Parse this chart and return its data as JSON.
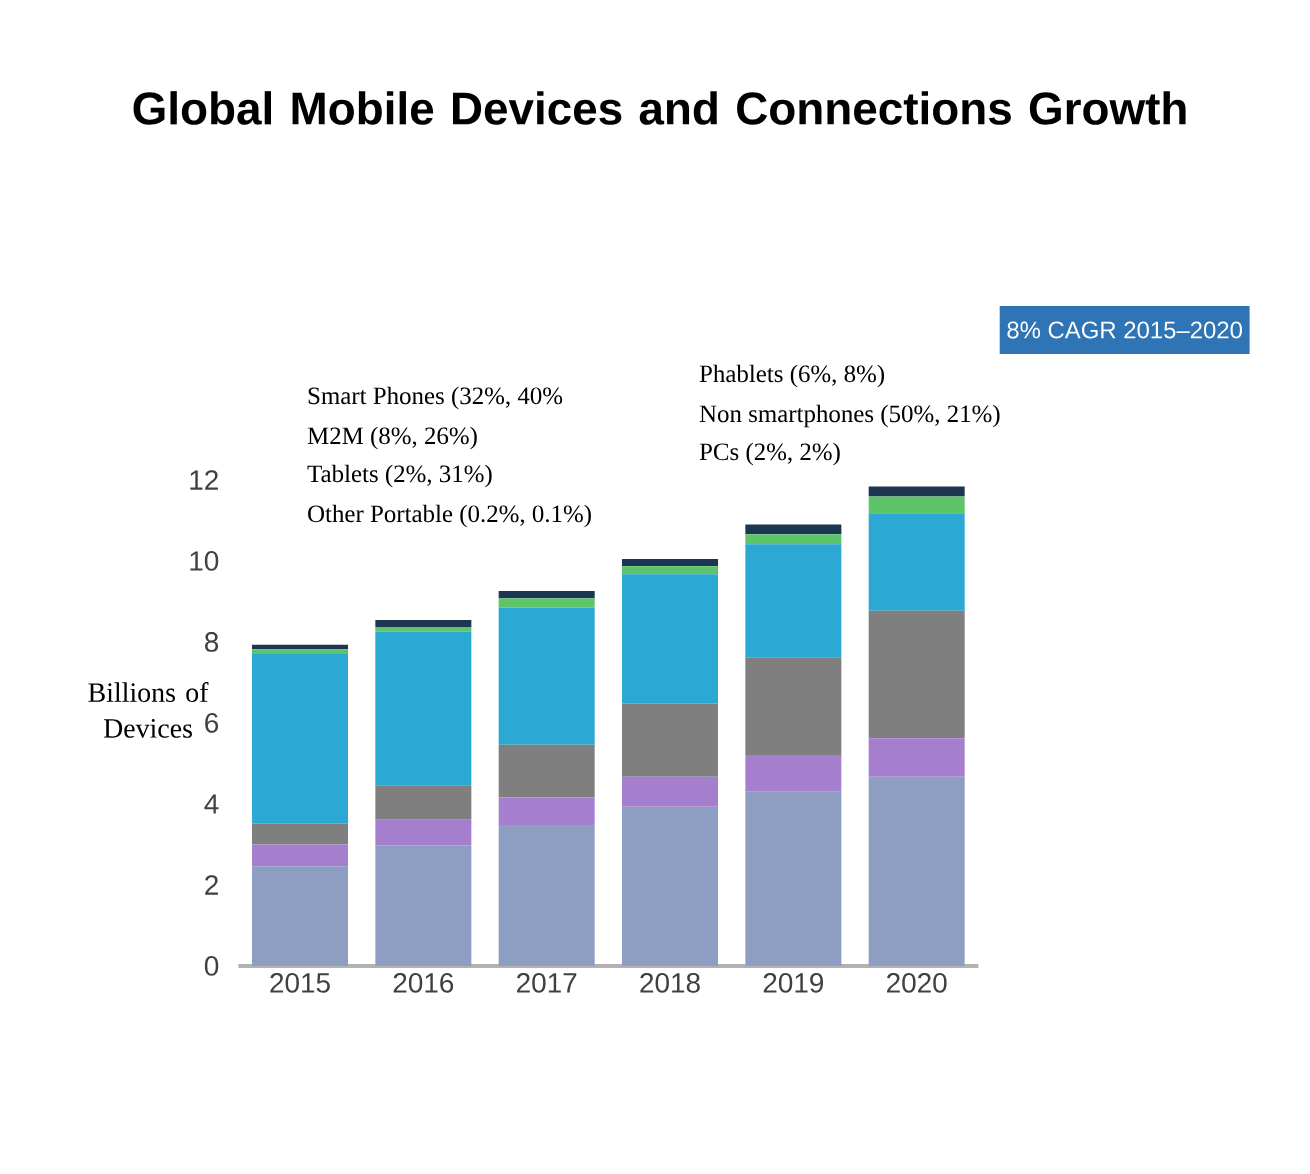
{
  "chart_data": {
    "type": "bar",
    "stacked": true,
    "title": "Global Mobile Devices and Connections Growth",
    "ylabel": "Billions of Devices",
    "categories": [
      "2015",
      "2016",
      "2017",
      "2018",
      "2019",
      "2020"
    ],
    "series": [
      {
        "color": "#8e9dc2",
        "values": [
          2.46,
          2.98,
          3.48,
          3.93,
          4.3,
          4.67
        ]
      },
      {
        "color": "#a57fce",
        "values": [
          0.54,
          0.63,
          0.68,
          0.74,
          0.91,
          0.95
        ]
      },
      {
        "color": "#7f7f7f",
        "values": [
          0.52,
          0.85,
          1.3,
          1.81,
          2.41,
          3.15
        ]
      },
      {
        "color": "#2ba8d3",
        "values": [
          4.18,
          3.79,
          3.39,
          3.19,
          2.79,
          2.41
        ]
      },
      {
        "color": "#5ec46a",
        "values": [
          0.12,
          0.11,
          0.23,
          0.2,
          0.25,
          0.41
        ]
      },
      {
        "color": "#1c3550",
        "values": [
          0.11,
          0.18,
          0.18,
          0.18,
          0.24,
          0.25
        ]
      }
    ],
    "ylim": [
      0,
      12
    ],
    "yticks": [
      0,
      2,
      4,
      6,
      8,
      10,
      12
    ],
    "grid": false,
    "annotations": [
      "Smart Phones (32%, 40%",
      "M2M (8%, 26%)",
      "Tablets (2%, 31%)",
      "Other Portable (0.2%, 0.1%)",
      "Phablets (6%, 8%)",
      "Non smartphones (50%, 21%)",
      "PCs (2%, 2%)",
      "8% CAGR 2015–2020"
    ]
  }
}
